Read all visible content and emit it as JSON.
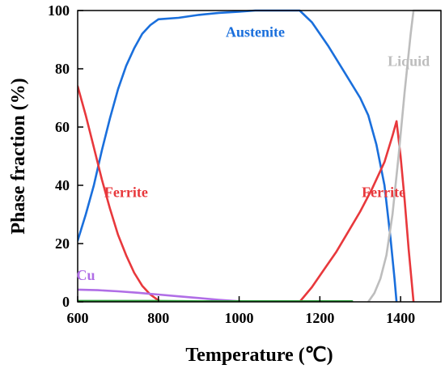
{
  "chart_data": {
    "type": "line",
    "xlabel": "Temperature (℃)",
    "ylabel": "Phase fraction (%)",
    "xlim": [
      600,
      1500
    ],
    "ylim": [
      0,
      100
    ],
    "x_ticks": [
      600,
      800,
      1000,
      1200,
      1400
    ],
    "y_ticks": [
      0,
      20,
      40,
      60,
      80,
      100
    ],
    "grid": false,
    "series": [
      {
        "name": "Austenite",
        "color": "#1a6fdc",
        "points": [
          [
            600,
            21
          ],
          [
            620,
            30
          ],
          [
            640,
            40
          ],
          [
            660,
            52
          ],
          [
            680,
            63
          ],
          [
            700,
            73
          ],
          [
            720,
            81
          ],
          [
            740,
            87
          ],
          [
            760,
            92
          ],
          [
            780,
            95
          ],
          [
            800,
            97
          ],
          [
            850,
            97.5
          ],
          [
            900,
            98.5
          ],
          [
            950,
            99.2
          ],
          [
            1000,
            99.6
          ],
          [
            1040,
            100
          ],
          [
            1100,
            100
          ],
          [
            1150,
            100
          ],
          [
            1180,
            96
          ],
          [
            1220,
            88
          ],
          [
            1260,
            79
          ],
          [
            1300,
            70
          ],
          [
            1320,
            64
          ],
          [
            1340,
            54
          ],
          [
            1360,
            40
          ],
          [
            1375,
            22
          ],
          [
            1385,
            8
          ],
          [
            1390,
            0
          ]
        ]
      },
      {
        "name": "Ferrite",
        "label_count": 2,
        "color": "#e8383c",
        "points": [
          [
            600,
            74
          ],
          [
            620,
            64
          ],
          [
            640,
            53
          ],
          [
            660,
            42
          ],
          [
            680,
            32
          ],
          [
            700,
            23
          ],
          [
            720,
            16
          ],
          [
            740,
            10
          ],
          [
            760,
            5.5
          ],
          [
            780,
            2.5
          ],
          [
            800,
            0.5
          ],
          [
            810,
            0
          ],
          [
            1150,
            0
          ],
          [
            1180,
            5
          ],
          [
            1210,
            11
          ],
          [
            1240,
            17
          ],
          [
            1270,
            24
          ],
          [
            1300,
            31
          ],
          [
            1330,
            39
          ],
          [
            1360,
            48
          ],
          [
            1380,
            57
          ],
          [
            1390,
            62
          ],
          [
            1400,
            50
          ],
          [
            1410,
            35
          ],
          [
            1420,
            18
          ],
          [
            1432,
            0
          ]
        ]
      },
      {
        "name": "Liquid",
        "color": "#bdbdbd",
        "points": [
          [
            1320,
            0
          ],
          [
            1335,
            3
          ],
          [
            1350,
            8
          ],
          [
            1365,
            16
          ],
          [
            1380,
            30
          ],
          [
            1395,
            50
          ],
          [
            1410,
            72
          ],
          [
            1425,
            92
          ],
          [
            1432,
            100
          ],
          [
            1500,
            100
          ]
        ]
      },
      {
        "name": "Cu",
        "color": "#b06ee6",
        "points": [
          [
            600,
            4.2
          ],
          [
            650,
            4
          ],
          [
            700,
            3.6
          ],
          [
            750,
            3.1
          ],
          [
            800,
            2.5
          ],
          [
            850,
            1.9
          ],
          [
            900,
            1.3
          ],
          [
            950,
            0.7
          ],
          [
            1000,
            0.2
          ],
          [
            1050,
            0
          ]
        ]
      },
      {
        "name": "",
        "color": "#2e9e3c",
        "points": [
          [
            600,
            0.3
          ],
          [
            700,
            0.3
          ],
          [
            800,
            0.3
          ],
          [
            900,
            0.2
          ],
          [
            1000,
            0.2
          ],
          [
            1100,
            0.2
          ],
          [
            1200,
            0.2
          ],
          [
            1280,
            0.2
          ]
        ]
      }
    ],
    "annotations": [
      {
        "text": "Austenite",
        "series": "Austenite",
        "x": 1040,
        "y": 91
      },
      {
        "text": "Liquid",
        "series": "Liquid",
        "x": 1420,
        "y": 81
      },
      {
        "text": "Ferrite",
        "series": "Ferrite",
        "x": 720,
        "y": 36
      },
      {
        "text": "Ferrite",
        "series": "Ferrite",
        "x": 1358,
        "y": 36
      },
      {
        "text": "Cu",
        "series": "Cu",
        "x": 620,
        "y": 7.5
      }
    ]
  }
}
